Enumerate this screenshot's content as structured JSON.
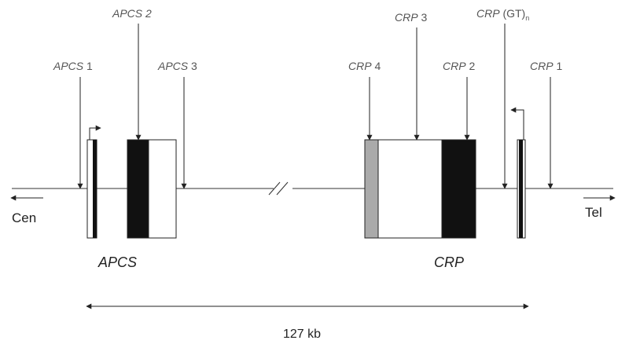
{
  "markers": {
    "apcs1": {
      "name": "APCS",
      "num": "1"
    },
    "apcs2": {
      "name": "APCS",
      "num": "2"
    },
    "apcs3": {
      "name": "APCS",
      "num": "3"
    },
    "crp4": {
      "name": "CRP",
      "num": "4"
    },
    "crp3": {
      "name": "CRP",
      "num": "3"
    },
    "crp2": {
      "name": "CRP",
      "num": "2"
    },
    "crpgt": {
      "name": "CRP",
      "num": "(GT)",
      "sub": "n"
    },
    "crp1": {
      "name": "CRP",
      "num": "1"
    }
  },
  "genes": {
    "apcs": "APCS",
    "crp": "CRP"
  },
  "ends": {
    "cen": "Cen",
    "tel": "Tel"
  },
  "distance": "127 kb"
}
